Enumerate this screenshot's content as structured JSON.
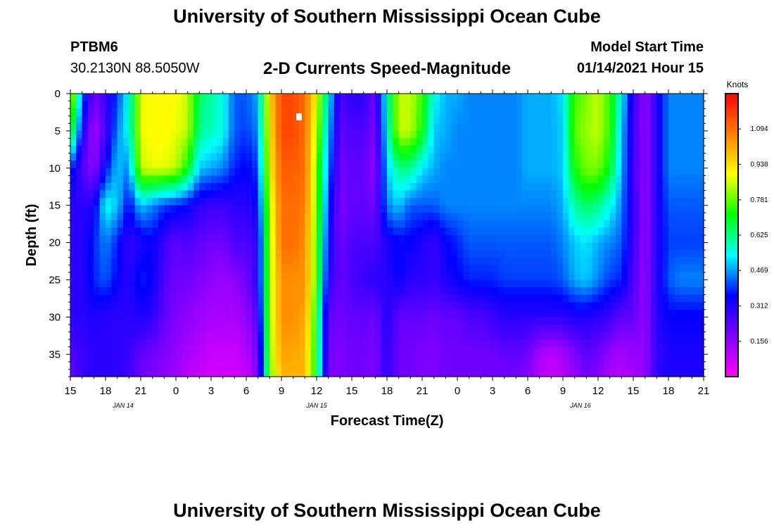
{
  "header": {
    "title": "University of Southern Mississippi Ocean Cube",
    "station": "PTBM6",
    "coords": "30.2130N 88.5050W",
    "plot_title": "2-D Currents Speed-Magnitude",
    "model_start_label": "Model Start Time",
    "model_start_value": "01/14/2021 Hour 15",
    "footer_title": "University of Southern Mississippi Ocean Cube"
  },
  "chart_data": {
    "type": "heatmap",
    "title": "2-D Currents Speed-Magnitude",
    "xlabel": "Forecast Time(Z)",
    "ylabel": "Depth (ft)",
    "xlim": [
      0,
      54
    ],
    "ylim": [
      0,
      38
    ],
    "x_tick_hours": [
      0,
      3,
      6,
      9,
      12,
      15,
      18,
      21,
      24,
      27,
      30,
      33,
      36,
      39,
      42,
      45,
      48,
      51,
      54
    ],
    "x_tick_labels": [
      "15",
      "18",
      "21",
      "0",
      "3",
      "6",
      "9",
      "12",
      "15",
      "18",
      "21",
      "0",
      "3",
      "6",
      "9",
      "12",
      "15",
      "18",
      "21"
    ],
    "date_labels": [
      {
        "text": "JAN 14",
        "hour": 4.5
      },
      {
        "text": "JAN 15",
        "hour": 21
      },
      {
        "text": "JAN 16",
        "hour": 43.5
      }
    ],
    "y_ticks": [
      0,
      5,
      10,
      15,
      20,
      25,
      30,
      35
    ],
    "y_tick_labels": [
      "0",
      "5",
      "10",
      "15",
      "20",
      "25",
      "30",
      "35"
    ],
    "colorbar": {
      "unit": "Knots",
      "min": 0.0,
      "max": 1.25,
      "tick_values": [
        0.156,
        0.312,
        0.469,
        0.625,
        0.781,
        0.938,
        1.094
      ],
      "tick_labels": [
        "0.156",
        "0.312",
        "0.469",
        "0.625",
        "0.781",
        "0.938",
        "1.094"
      ],
      "colors": [
        "#ff00ff",
        "#8000ff",
        "#0000ff",
        "#00ffff",
        "#00ff00",
        "#ffff00",
        "#ff8000",
        "#ff0000"
      ]
    },
    "depths": [
      0,
      5,
      10,
      15,
      20,
      25,
      30,
      35,
      38
    ],
    "time_hours": [
      0,
      1,
      2,
      3,
      4,
      5,
      6,
      7,
      8,
      9,
      10,
      11,
      12,
      13,
      14,
      15,
      16,
      17,
      18,
      19,
      20,
      21,
      22,
      23,
      24,
      25,
      26,
      27,
      28,
      29,
      30,
      31,
      32,
      33,
      34,
      35,
      36,
      37,
      38,
      39,
      40,
      41,
      42,
      43,
      44,
      45,
      46,
      47,
      48,
      49,
      50,
      51,
      52,
      53,
      54
    ],
    "speed_knots": [
      [
        0.9,
        0.45,
        0.2,
        0.28,
        0.4,
        0.55,
        0.88,
        0.9,
        0.9,
        0.9,
        0.85,
        0.65,
        0.6,
        0.55,
        0.42,
        0.42,
        0.48,
        0.95,
        1.15,
        1.15,
        1.1,
        0.9,
        0.55,
        0.25,
        0.3,
        0.3,
        0.2,
        0.58,
        0.85,
        0.85,
        0.75,
        0.55,
        0.48,
        0.48,
        0.45,
        0.45,
        0.45,
        0.45,
        0.45,
        0.48,
        0.48,
        0.48,
        0.52,
        0.75,
        0.8,
        0.85,
        0.75,
        0.55,
        0.3,
        0.15,
        0.3,
        0.45,
        0.45,
        0.45,
        0.45
      ],
      [
        0.75,
        0.35,
        0.12,
        0.25,
        0.45,
        0.55,
        0.88,
        0.9,
        0.9,
        0.88,
        0.85,
        0.62,
        0.58,
        0.55,
        0.42,
        0.4,
        0.45,
        0.92,
        1.15,
        1.15,
        1.1,
        0.85,
        0.5,
        0.22,
        0.25,
        0.25,
        0.18,
        0.55,
        0.85,
        0.85,
        0.72,
        0.5,
        0.48,
        0.45,
        0.45,
        0.45,
        0.45,
        0.45,
        0.45,
        0.48,
        0.48,
        0.48,
        0.5,
        0.78,
        0.82,
        0.85,
        0.75,
        0.5,
        0.28,
        0.15,
        0.3,
        0.45,
        0.45,
        0.45,
        0.45
      ],
      [
        0.4,
        0.25,
        0.15,
        0.35,
        0.5,
        0.45,
        0.85,
        0.88,
        0.88,
        0.85,
        0.72,
        0.5,
        0.48,
        0.45,
        0.38,
        0.35,
        0.4,
        0.9,
        1.12,
        1.12,
        1.1,
        0.8,
        0.45,
        0.2,
        0.22,
        0.22,
        0.15,
        0.5,
        0.62,
        0.62,
        0.52,
        0.48,
        0.45,
        0.45,
        0.45,
        0.45,
        0.45,
        0.45,
        0.45,
        0.48,
        0.48,
        0.48,
        0.5,
        0.72,
        0.8,
        0.8,
        0.7,
        0.48,
        0.28,
        0.15,
        0.3,
        0.45,
        0.45,
        0.45,
        0.45
      ],
      [
        0.3,
        0.3,
        0.32,
        0.55,
        0.5,
        0.35,
        0.5,
        0.45,
        0.4,
        0.38,
        0.35,
        0.3,
        0.28,
        0.28,
        0.3,
        0.3,
        0.35,
        0.85,
        1.1,
        1.1,
        1.08,
        0.8,
        0.4,
        0.18,
        0.22,
        0.22,
        0.2,
        0.45,
        0.5,
        0.42,
        0.42,
        0.42,
        0.45,
        0.45,
        0.45,
        0.45,
        0.45,
        0.45,
        0.45,
        0.45,
        0.45,
        0.45,
        0.48,
        0.6,
        0.65,
        0.62,
        0.55,
        0.45,
        0.28,
        0.15,
        0.3,
        0.42,
        0.42,
        0.42,
        0.42
      ],
      [
        0.3,
        0.3,
        0.38,
        0.45,
        0.38,
        0.28,
        0.32,
        0.35,
        0.28,
        0.22,
        0.25,
        0.22,
        0.2,
        0.2,
        0.25,
        0.25,
        0.3,
        0.82,
        1.1,
        1.1,
        1.05,
        0.78,
        0.35,
        0.2,
        0.25,
        0.25,
        0.25,
        0.32,
        0.35,
        0.35,
        0.32,
        0.28,
        0.35,
        0.38,
        0.42,
        0.42,
        0.42,
        0.42,
        0.42,
        0.42,
        0.42,
        0.42,
        0.45,
        0.5,
        0.52,
        0.48,
        0.45,
        0.42,
        0.28,
        0.15,
        0.3,
        0.4,
        0.4,
        0.4,
        0.4
      ],
      [
        0.3,
        0.3,
        0.38,
        0.42,
        0.35,
        0.3,
        0.38,
        0.35,
        0.25,
        0.2,
        0.2,
        0.18,
        0.16,
        0.14,
        0.16,
        0.2,
        0.3,
        0.82,
        1.05,
        1.05,
        1.05,
        0.78,
        0.3,
        0.22,
        0.25,
        0.28,
        0.3,
        0.3,
        0.35,
        0.3,
        0.3,
        0.28,
        0.32,
        0.35,
        0.38,
        0.38,
        0.38,
        0.4,
        0.4,
        0.4,
        0.4,
        0.4,
        0.42,
        0.48,
        0.5,
        0.45,
        0.4,
        0.38,
        0.25,
        0.15,
        0.3,
        0.42,
        0.45,
        0.45,
        0.45
      ],
      [
        0.3,
        0.3,
        0.32,
        0.3,
        0.3,
        0.3,
        0.32,
        0.3,
        0.22,
        0.18,
        0.16,
        0.14,
        0.12,
        0.12,
        0.12,
        0.15,
        0.25,
        0.82,
        1.05,
        1.05,
        1.02,
        0.72,
        0.22,
        0.2,
        0.22,
        0.22,
        0.2,
        0.32,
        0.22,
        0.22,
        0.22,
        0.2,
        0.22,
        0.22,
        0.25,
        0.25,
        0.28,
        0.3,
        0.3,
        0.3,
        0.3,
        0.3,
        0.3,
        0.32,
        0.32,
        0.3,
        0.28,
        0.22,
        0.22,
        0.15,
        0.3,
        0.35,
        0.35,
        0.35,
        0.35
      ],
      [
        0.25,
        0.28,
        0.3,
        0.3,
        0.3,
        0.28,
        0.22,
        0.2,
        0.18,
        0.15,
        0.12,
        0.1,
        0.08,
        0.08,
        0.08,
        0.1,
        0.2,
        0.8,
        1.02,
        1.02,
        1.0,
        0.7,
        0.2,
        0.18,
        0.2,
        0.2,
        0.18,
        0.3,
        0.2,
        0.2,
        0.18,
        0.18,
        0.2,
        0.2,
        0.2,
        0.2,
        0.2,
        0.22,
        0.22,
        0.2,
        0.12,
        0.1,
        0.12,
        0.18,
        0.22,
        0.2,
        0.15,
        0.12,
        0.15,
        0.15,
        0.28,
        0.32,
        0.32,
        0.32,
        0.32
      ],
      [
        0.2,
        0.28,
        0.3,
        0.3,
        0.3,
        0.28,
        0.2,
        0.18,
        0.16,
        0.14,
        0.1,
        0.08,
        0.06,
        0.06,
        0.06,
        0.08,
        0.18,
        0.78,
        1.0,
        1.0,
        1.0,
        0.7,
        0.18,
        0.18,
        0.2,
        0.2,
        0.18,
        0.3,
        0.2,
        0.2,
        0.18,
        0.18,
        0.2,
        0.2,
        0.2,
        0.2,
        0.2,
        0.2,
        0.2,
        0.18,
        0.1,
        0.08,
        0.1,
        0.15,
        0.2,
        0.18,
        0.12,
        0.1,
        0.12,
        0.15,
        0.3,
        0.32,
        0.32,
        0.32,
        0.32
      ]
    ]
  }
}
